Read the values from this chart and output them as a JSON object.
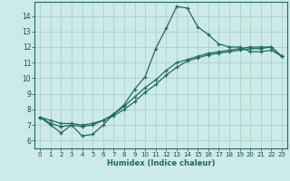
{
  "xlabel": "Humidex (Indice chaleur)",
  "ylabel": "",
  "background_color": "#cceae8",
  "grid_color": "#b0d4cc",
  "line_color": "#1e6b5e",
  "xlim": [
    -0.5,
    23.5
  ],
  "ylim": [
    5.5,
    14.9
  ],
  "xticks": [
    0,
    1,
    2,
    3,
    4,
    5,
    6,
    7,
    8,
    9,
    10,
    11,
    12,
    13,
    14,
    15,
    16,
    17,
    18,
    19,
    20,
    21,
    22,
    23
  ],
  "yticks": [
    6,
    7,
    8,
    9,
    10,
    11,
    12,
    13,
    14
  ],
  "series1": [
    7.5,
    7.0,
    6.5,
    7.0,
    6.3,
    6.4,
    7.0,
    7.7,
    8.3,
    9.3,
    10.1,
    11.9,
    13.2,
    14.6,
    14.5,
    13.3,
    12.8,
    12.2,
    12.0,
    12.0,
    11.7,
    11.7,
    11.8,
    11.4
  ],
  "series2": [
    7.5,
    7.3,
    7.1,
    7.1,
    7.0,
    7.1,
    7.3,
    7.6,
    8.0,
    8.5,
    9.1,
    9.6,
    10.2,
    10.7,
    11.1,
    11.3,
    11.5,
    11.6,
    11.7,
    11.8,
    11.9,
    11.9,
    12.0,
    11.4
  ],
  "series3": [
    7.5,
    7.1,
    6.9,
    7.0,
    6.9,
    7.0,
    7.3,
    7.7,
    8.2,
    8.8,
    9.4,
    9.9,
    10.5,
    11.0,
    11.2,
    11.4,
    11.6,
    11.7,
    11.8,
    11.9,
    12.0,
    12.0,
    12.0,
    11.4
  ]
}
